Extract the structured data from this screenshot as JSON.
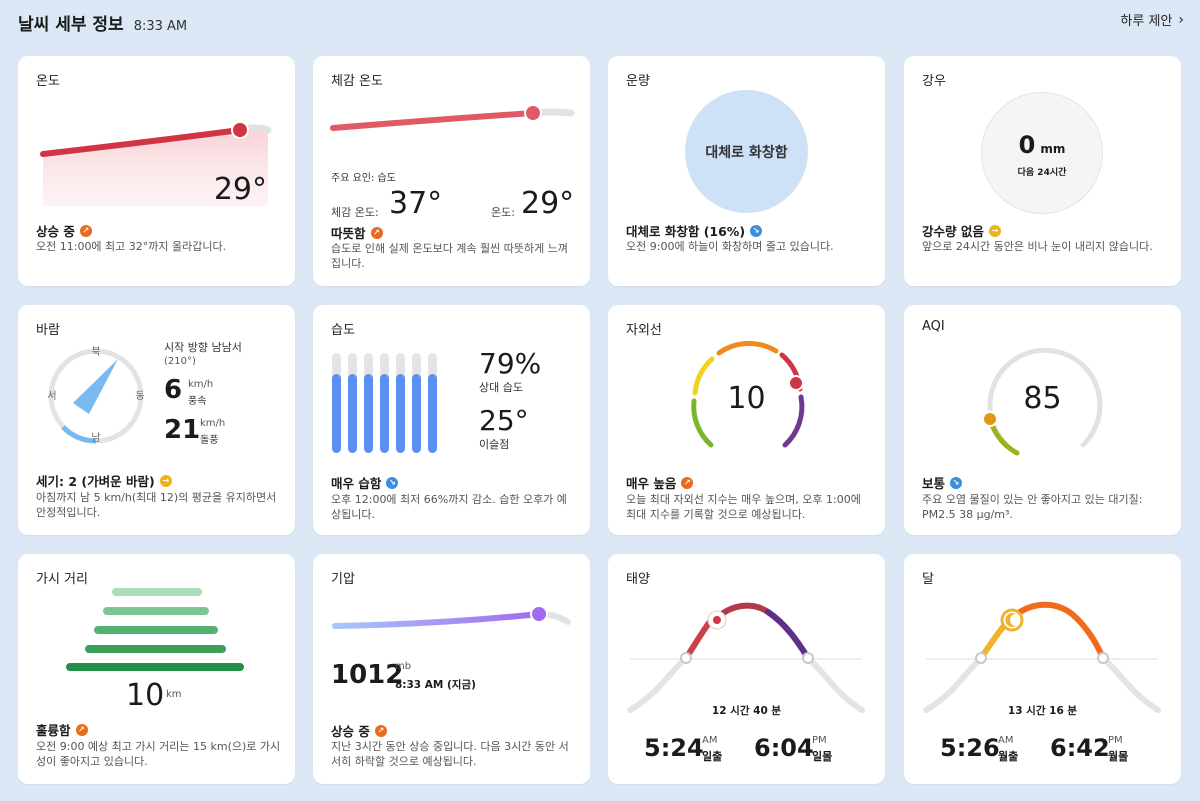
{
  "header": {
    "title": "날씨 세부 정보",
    "time": "8:33 AM",
    "suggest": "하루 제안",
    "chevron": "›"
  },
  "temperature": {
    "title": "온도",
    "value": "29°",
    "status": "상승 중",
    "desc": "오전 11:00에 최고 32°까지 올라갑니다.",
    "trend_color": "#d13544"
  },
  "feels": {
    "title": "체감 온도",
    "factor": "주요 요인: 습도",
    "feels_label": "체감 온도:",
    "feels_value": "37°",
    "temp_label": "온도:",
    "temp_value": "29°",
    "status": "따뜻함",
    "desc": "습도로 인해 실제 온도보다 계속 훨씬 따뜻하게 느껴집니다."
  },
  "cloud": {
    "title": "운량",
    "circle_text": "대체로 화창함",
    "status": "대체로 화창함 (16%)",
    "desc": "오전 9:00에 하늘이 화창하며 줄고 있습니다.",
    "coverage_pct": 16
  },
  "rain": {
    "title": "강우",
    "value": "0",
    "unit": "mm",
    "period": "다음 24시간",
    "status": "강수량 없음",
    "desc": "앞으로 24시간 동안은 비나 눈이 내리지 않습니다."
  },
  "wind": {
    "title": "바람",
    "dir_label": "시작 방향 남남서",
    "dir_deg": "(210°)",
    "compass": {
      "n": "북",
      "s": "남",
      "e": "동",
      "w": "서"
    },
    "speed": "6",
    "speed_unit": "km/h",
    "speed_label": "풍속",
    "gust": "21",
    "gust_unit": "km/h",
    "gust_label": "돌풍",
    "status": "세기: 2 (가벼운 바람)",
    "desc": "아침까지 남 5 km/h(최대 12)의 평균을 유지하면서 안정적입니다."
  },
  "humidity": {
    "title": "습도",
    "rel_value": "79%",
    "rel_label": "상대 습도",
    "dew_value": "25°",
    "dew_label": "이슬점",
    "status": "매우 습함",
    "desc": "오후 12:00에 최저 66%까지 감소. 습한 오후가 예상됩니다.",
    "bars": [
      0.79,
      0.79,
      0.79,
      0.79,
      0.79,
      0.79,
      0.79
    ]
  },
  "uv": {
    "title": "자외선",
    "value": "10",
    "status": "매우 높음",
    "desc": "오늘 최대 자외선 지수는 매우 높으며, 오후 1:00에 최대 지수를 기록할 것으로 예상됩니다."
  },
  "aqi": {
    "title": "AQI",
    "value": "85",
    "status": "보통",
    "desc": "주요 오염 물질이 있는 안 좋아지고 있는 대기질: PM2.5 38 µg/m³."
  },
  "visibility": {
    "title": "가시 거리",
    "value": "10",
    "unit": "km",
    "status": "훌륭함",
    "desc": "오전 9:00 예상 최고 가시 거리는 15 km(으)로 가시성이 좋아지고 있습니다."
  },
  "pressure": {
    "title": "기압",
    "value": "1012",
    "unit": "mb",
    "time": "8:33 AM (지금)",
    "status": "상승 중",
    "desc": "지난 3시간 동안 상승 중입니다. 다음 3시간 동안 서서히 하락할 것으로 예상됩니다."
  },
  "sun": {
    "title": "태양",
    "duration": "12 시간 40 분",
    "rise_time": "5:24",
    "rise_ampm": "AM",
    "rise_label": "일출",
    "set_time": "6:04",
    "set_ampm": "PM",
    "set_label": "일몰"
  },
  "moon": {
    "title": "달",
    "duration": "13 시간 16 분",
    "rise_time": "5:26",
    "rise_ampm": "AM",
    "rise_label": "월출",
    "set_time": "6:42",
    "set_ampm": "PM",
    "set_label": "월몰"
  }
}
